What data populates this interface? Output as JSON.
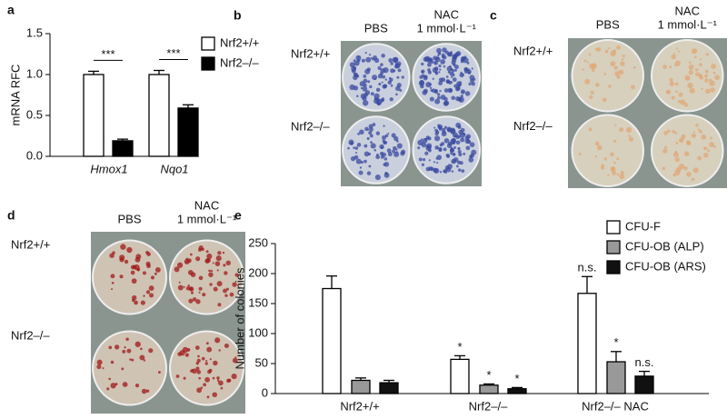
{
  "panel_labels": [
    "a",
    "b",
    "c",
    "d",
    "e"
  ],
  "photo_panels": [
    {
      "columns": [
        [
          "PBS"
        ],
        [
          "NAC",
          "1 mmol·L⁻¹"
        ]
      ],
      "rows": [
        "Nrf2+/+",
        "Nrf2–/–"
      ]
    },
    {
      "columns": [
        [
          "PBS"
        ],
        [
          "NAC",
          "1 mmol·L⁻¹"
        ]
      ],
      "rows": [
        "Nrf2+/+",
        "Nrf2–/–"
      ]
    },
    {
      "columns": [
        [
          "PBS"
        ],
        [
          "NAC",
          "1 mmol·L⁻¹"
        ]
      ],
      "rows": [
        "Nrf2+/+",
        "Nrf2–/–"
      ]
    }
  ],
  "chart_data": [
    {
      "type": "bar",
      "y_label": "mRNA RFC",
      "categories": [
        "Hmox1",
        "Nqo1"
      ],
      "series": [
        {
          "name": "Nrf2+/+",
          "color": "#ffffff",
          "values": [
            1.0,
            1.0
          ],
          "errors": [
            0.04,
            0.05
          ]
        },
        {
          "name": "Nrf2–/–",
          "color": "#000000",
          "values": [
            0.19,
            0.59
          ],
          "errors": [
            0.02,
            0.04
          ]
        }
      ],
      "annotations": [
        "***",
        "***"
      ],
      "ylim": [
        0,
        1.5
      ],
      "yticks": [
        {
          "value": 0,
          "label": "0.0"
        },
        0.5,
        {
          "value": 1,
          "label": "1.0"
        },
        1.5
      ]
    },
    {
      "type": "bar",
      "y_label": "Number of colonies",
      "categories": [
        "Nrf2+/+",
        "Nrf2–/–",
        "Nrf2–/– NAC"
      ],
      "series": [
        {
          "name": "CFU-F",
          "color": "#ffffff",
          "values": [
            175,
            57,
            167
          ],
          "errors": [
            21,
            6,
            28
          ],
          "annotations": [
            null,
            "*",
            "n.s."
          ]
        },
        {
          "name": "CFU-OB (ALP)",
          "color": "#999999",
          "values": [
            22,
            14,
            53
          ],
          "errors": [
            4,
            2,
            17
          ],
          "annotations": [
            null,
            "*",
            "*"
          ]
        },
        {
          "name": "CFU-OB (ARS)",
          "color": "#111111",
          "values": [
            18,
            8,
            29
          ],
          "errors": [
            4,
            2,
            8
          ],
          "annotations": [
            null,
            "*",
            "n.s."
          ]
        }
      ],
      "ylim": [
        0,
        250
      ],
      "yticks": [
        0,
        50,
        100,
        150,
        200,
        250
      ]
    }
  ]
}
